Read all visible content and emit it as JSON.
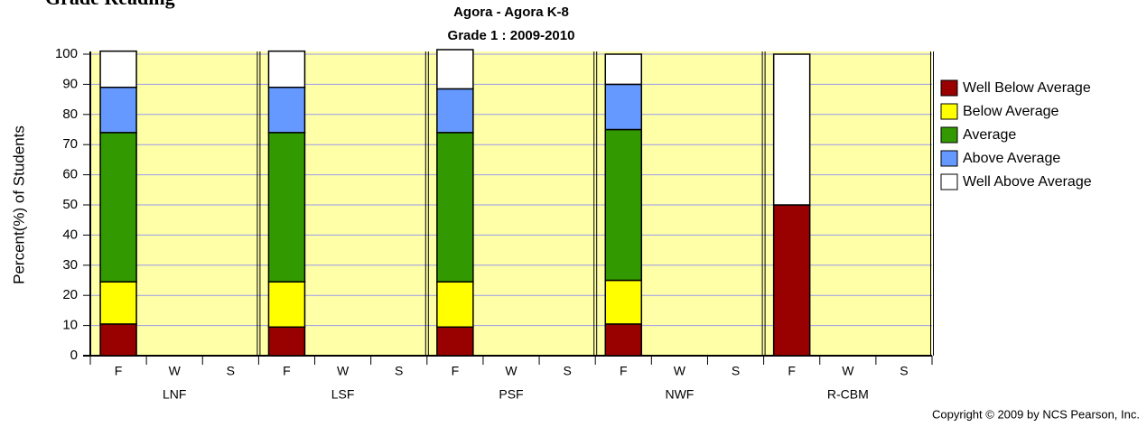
{
  "header": {
    "title": "Grade Reading"
  },
  "chart_data": {
    "type": "stacked_bar",
    "title": "Agora - Agora K-8",
    "subtitle": "Grade 1 : 2009-2010",
    "y_label": "Percent(%) of Students",
    "groups": [
      "LNF",
      "LSF",
      "PSF",
      "NWF",
      "R-CBM"
    ],
    "categories": [
      "F",
      "W",
      "S",
      "F",
      "W",
      "S",
      "F",
      "W",
      "S",
      "F",
      "W",
      "S",
      "F",
      "W",
      "S"
    ],
    "series": [
      {
        "name": "Well Below Average",
        "color": "#990000",
        "values": [
          10.5,
          null,
          null,
          9.5,
          null,
          null,
          9.5,
          null,
          null,
          10.5,
          null,
          null,
          50,
          null,
          null
        ]
      },
      {
        "name": "Below Average",
        "color": "#ffff00",
        "values": [
          14,
          null,
          null,
          15,
          null,
          null,
          15,
          null,
          null,
          14.5,
          null,
          null,
          0,
          null,
          null
        ]
      },
      {
        "name": "Average",
        "color": "#339900",
        "values": [
          49.5,
          null,
          null,
          49.5,
          null,
          null,
          49.5,
          null,
          null,
          50,
          null,
          null,
          0,
          null,
          null
        ]
      },
      {
        "name": "Above Average",
        "color": "#6699ff",
        "values": [
          15,
          null,
          null,
          15,
          null,
          null,
          14.5,
          null,
          null,
          15,
          null,
          null,
          0,
          null,
          null
        ]
      },
      {
        "name": "Well Above Average",
        "color": "#ffffff",
        "values": [
          12,
          null,
          null,
          12,
          null,
          null,
          13,
          null,
          null,
          10,
          null,
          null,
          50,
          null,
          null
        ]
      }
    ],
    "ylim": [
      0,
      100
    ],
    "yticks": [
      0,
      10,
      20,
      30,
      40,
      50,
      60,
      70,
      80,
      90,
      100
    ],
    "grid": true,
    "legend": "right",
    "footer": "Copyright © 2009 by NCS Pearson, Inc."
  }
}
